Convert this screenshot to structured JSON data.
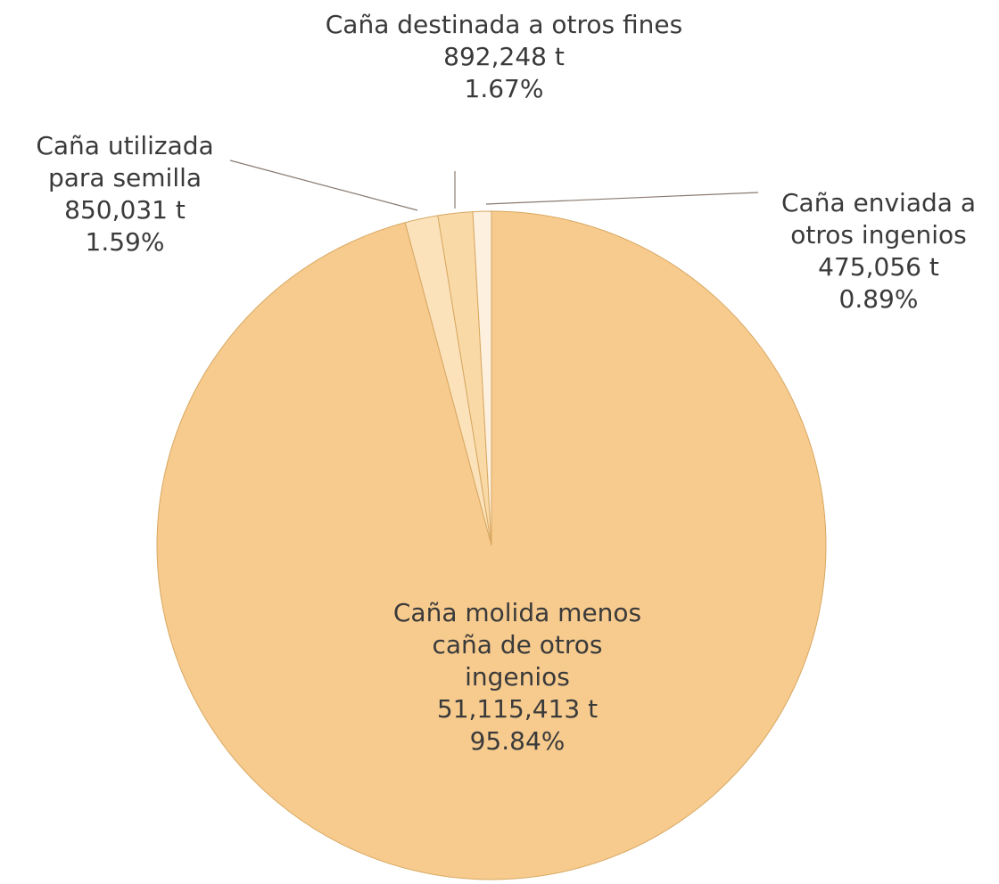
{
  "chart_data": {
    "type": "pie",
    "categories": [
      "Caña molida menos caña de otros ingenios",
      "Caña utilizada para semilla",
      "Caña destinada a otros fines",
      "Caña enviada a otros ingenios"
    ],
    "values": [
      51115413,
      850031,
      892248,
      475056
    ],
    "value_labels": [
      "51,115,413 t",
      "850,031 t",
      "892,248 t",
      "475,056 t"
    ],
    "percentages": [
      95.84,
      1.59,
      1.67,
      0.89
    ],
    "percentage_labels": [
      "95.84%",
      "1.59%",
      "1.67%",
      "0.89%"
    ],
    "colors": [
      "#f7cb8e",
      "#fbe2bb",
      "#f9d9a6",
      "#fdf0de"
    ]
  }
}
